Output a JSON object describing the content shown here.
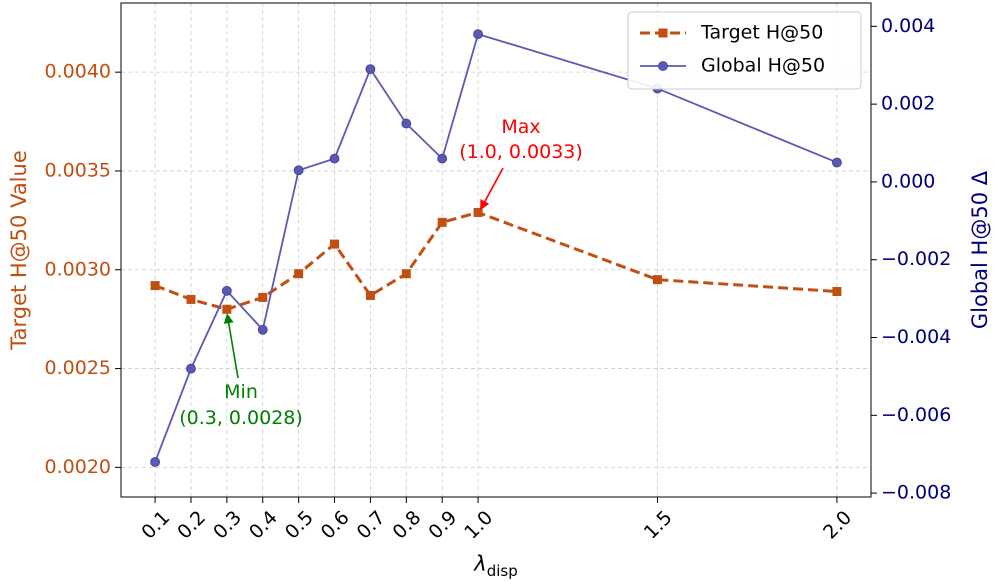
{
  "chart_data": {
    "type": "line",
    "x": [
      0.1,
      0.2,
      0.3,
      0.4,
      0.5,
      0.6,
      0.7,
      0.8,
      0.9,
      1.0,
      1.5,
      2.0
    ],
    "x_tick_labels": [
      "0.1",
      "0.2",
      "0.3",
      "0.4",
      "0.5",
      "0.6",
      "0.7",
      "0.8",
      "0.9",
      "1.0",
      "1.5",
      "2.0"
    ],
    "xlabel_main": "λ",
    "xlabel_sub": "disp",
    "xlim": [
      0.005,
      2.095
    ],
    "grid": true,
    "legend_position": "top-right",
    "left_axis": {
      "label": "Target H@50 Value",
      "color": "#c24f12",
      "ylim": [
        0.00185,
        0.00435
      ],
      "ticks": [
        0.002,
        0.0025,
        0.003,
        0.0035,
        0.004
      ],
      "tick_labels": [
        "0.0020",
        "0.0025",
        "0.0030",
        "0.0035",
        "0.0040"
      ]
    },
    "right_axis": {
      "label": "Global H@50 Δ",
      "color": "#00007f",
      "ylim": [
        -0.0081,
        0.0046
      ],
      "ticks": [
        -0.008,
        -0.006,
        -0.004,
        -0.002,
        0.0,
        0.002,
        0.004
      ],
      "tick_labels": [
        "−0.008",
        "−0.006",
        "−0.004",
        "−0.002",
        "0.000",
        "0.002",
        "0.004"
      ]
    },
    "series": [
      {
        "name": "Target H@50",
        "axis": "left",
        "color": "#c24f12",
        "style": "dashed",
        "marker": "square",
        "values": [
          0.00292,
          0.00285,
          0.0028,
          0.00286,
          0.00298,
          0.00313,
          0.00287,
          0.00298,
          0.00324,
          0.00329,
          0.00295,
          0.00289
        ]
      },
      {
        "name": "Global H@50",
        "axis": "right",
        "color": "#5a5ab4",
        "style": "solid",
        "marker": "circle",
        "values": [
          -0.0072,
          -0.0048,
          -0.0028,
          -0.0038,
          0.0003,
          0.0006,
          0.0029,
          0.0015,
          0.0006,
          0.0038,
          0.0024,
          0.0005
        ]
      }
    ],
    "annotations": [
      {
        "title": "Max",
        "text": "(1.0, 0.0033)",
        "x": 1.0,
        "y": 0.00329,
        "color": "#ff0000"
      },
      {
        "title": "Min",
        "text": "(0.3, 0.0028)",
        "x": 0.3,
        "y": 0.0028,
        "color": "#008000"
      }
    ]
  }
}
